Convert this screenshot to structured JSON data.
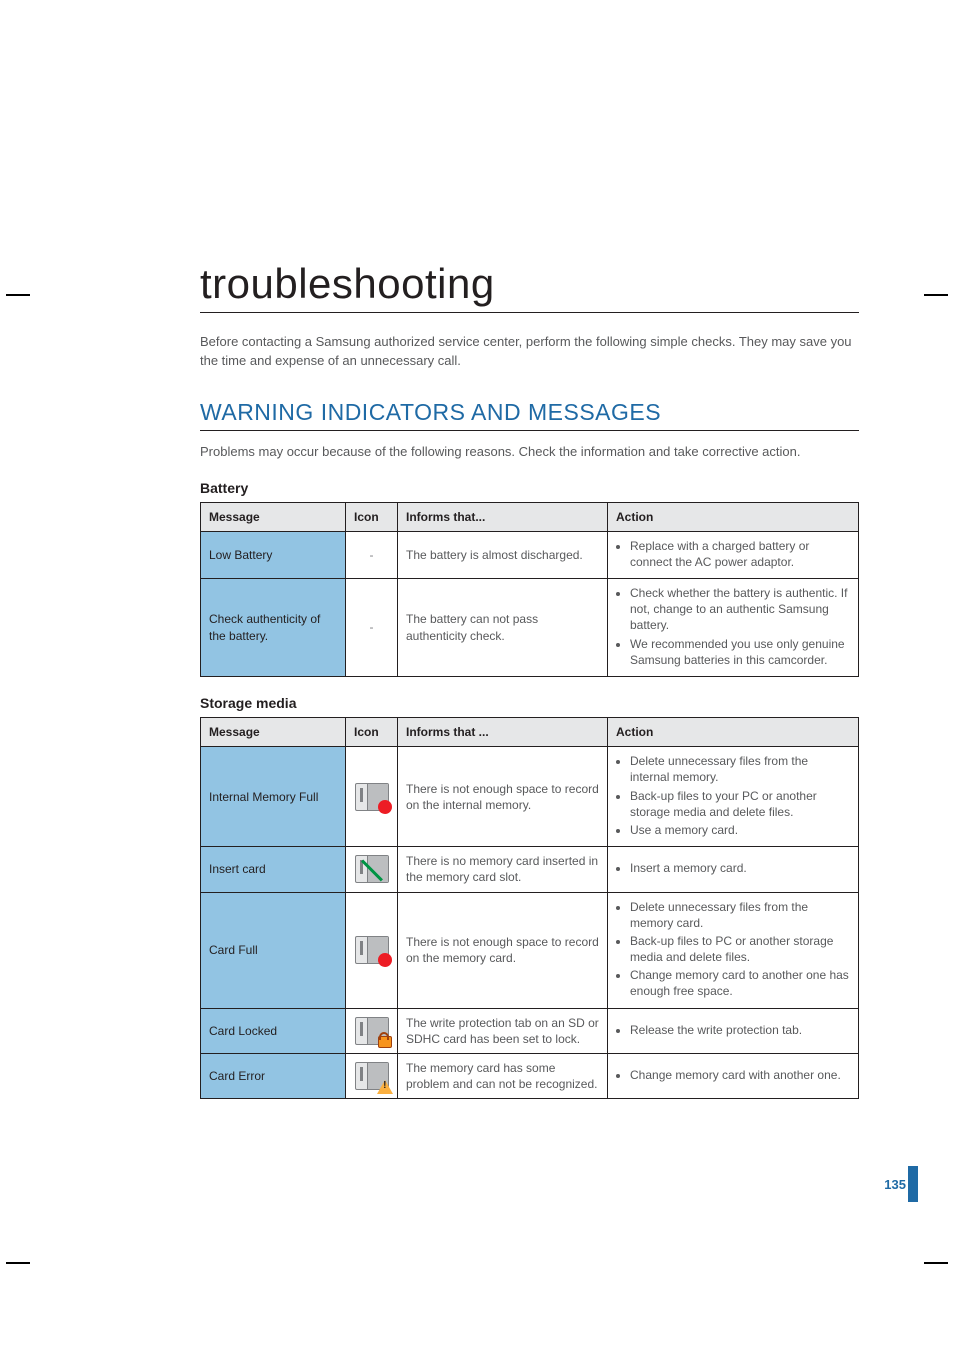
{
  "title": "troubleshooting",
  "intro": "Before contacting a Samsung authorized service center, perform the following simple checks. They may save you the time and expense of an unnecessary call.",
  "section_heading": "WARNING INDICATORS AND MESSAGES",
  "section_intro": "Problems may occur because of the following reasons. Check the information and take corrective action.",
  "colors": {
    "heading_blue": "#1f6aa5",
    "msg_cell_blue": "#92c4e3",
    "header_bg": "#e6e7e8",
    "rule": "#231f20",
    "text": "#58595b"
  },
  "columns": [
    "Message",
    "Icon",
    "Informs that ...",
    "Action"
  ],
  "battery": {
    "title": "Battery",
    "informs_header": "Informs that...",
    "rows": [
      {
        "message": "Low Battery",
        "icon": "dash",
        "informs": "The battery is almost discharged.",
        "actions": [
          "Replace with a charged battery or connect the AC power adaptor."
        ]
      },
      {
        "message": "Check authenticity of the battery.",
        "icon": "dash",
        "informs": "The battery can not pass authenticity check.",
        "actions": [
          "Check whether the battery is authentic. If not, change to an authentic Samsung battery.",
          "We recommended you use only genuine Samsung batteries in this camcorder."
        ]
      }
    ]
  },
  "storage": {
    "title": "Storage media",
    "informs_header": "Informs that ...",
    "rows": [
      {
        "message": "Internal Memory Full",
        "icon": "red",
        "informs": "There is not enough space to record on the internal memory.",
        "actions": [
          "Delete unnecessary files from the internal memory.",
          "Back-up files to your PC or another storage media and delete files.",
          "Use a memory card."
        ]
      },
      {
        "message": "Insert card",
        "icon": "green-slash",
        "informs": "There is no memory card inserted in the memory card slot.",
        "actions": [
          "Insert a memory card."
        ]
      },
      {
        "message": "Card Full",
        "icon": "red",
        "informs": "There is not enough space to record on the memory card.",
        "actions": [
          "Delete unnecessary files from the memory card.",
          "Back-up files to PC or another storage media and delete files.",
          "Change memory card to another one has enough free space."
        ]
      },
      {
        "message": "Card Locked",
        "icon": "lock",
        "informs": "The write protection tab on an SD or SDHC card has been set to lock.",
        "actions": [
          "Release the write protection tab."
        ]
      },
      {
        "message": "Card Error",
        "icon": "warn",
        "informs": "The memory card has some problem and can not be recognized.",
        "actions": [
          "Change memory card with another one."
        ]
      }
    ]
  },
  "page_number": "135"
}
